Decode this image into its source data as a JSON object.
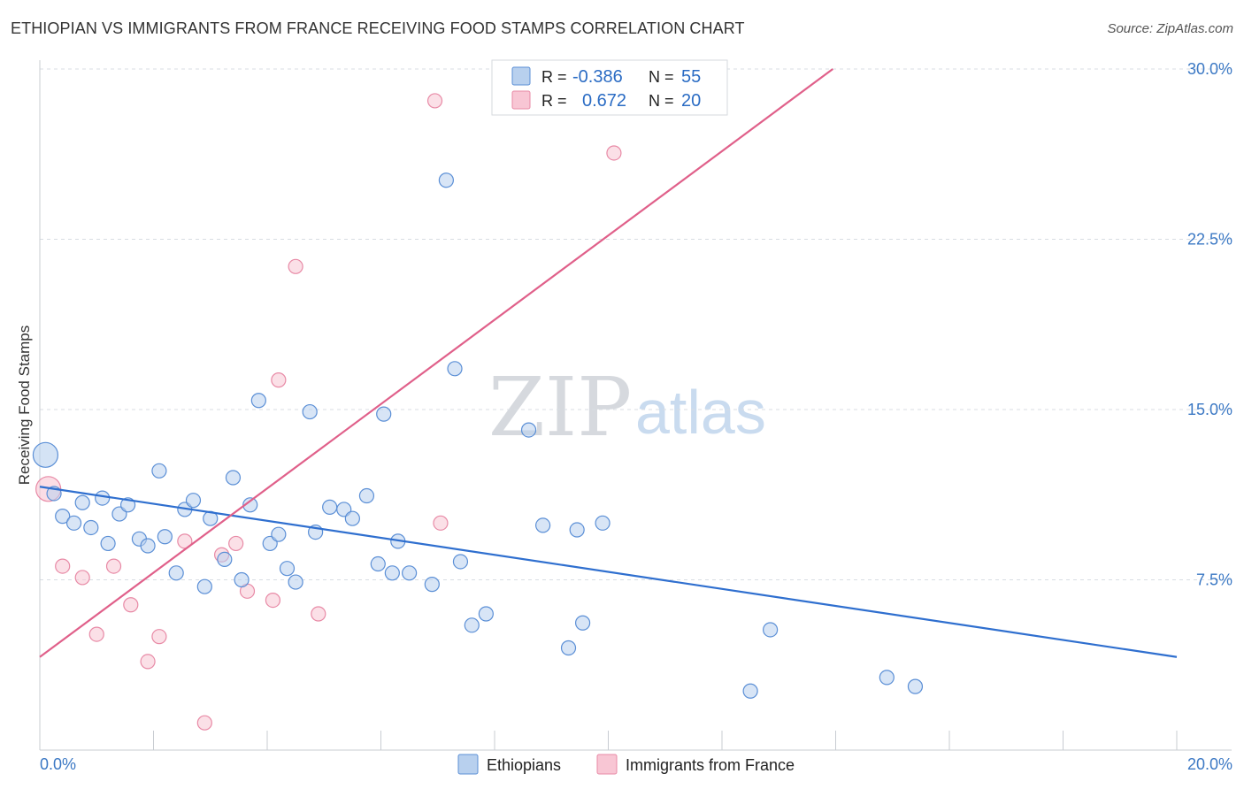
{
  "title": "ETHIOPIAN VS IMMIGRANTS FROM FRANCE RECEIVING FOOD STAMPS CORRELATION CHART",
  "source": "Source: ZipAtlas.com",
  "watermark": {
    "zip": "ZIP",
    "atlas": "atlas"
  },
  "colors": {
    "blue_fill": "#b8d0ee",
    "blue_stroke": "#5b8fd6",
    "blue_line": "#2f6fcf",
    "pink_fill": "#f8c6d4",
    "pink_stroke": "#e88aa6",
    "pink_line": "#e0608a",
    "tick_text": "#3b78c4",
    "grid": "#d8dde3"
  },
  "legend_box": {
    "row1": {
      "r_label": "R =",
      "r_value": "-0.386",
      "n_label": "N =",
      "n_value": "55"
    },
    "row2": {
      "r_label": "R =",
      "r_value": "0.672",
      "n_label": "N =",
      "n_value": "20"
    }
  },
  "chart_data": {
    "type": "scatter",
    "title": "ETHIOPIAN VS IMMIGRANTS FROM FRANCE RECEIVING FOOD STAMPS CORRELATION CHART",
    "xlabel": "",
    "ylabel": "Receiving Food Stamps",
    "xlim": [
      0,
      20
    ],
    "ylim": [
      0,
      30
    ],
    "x_tick_labels": [
      "0.0%",
      "20.0%"
    ],
    "y_tick_labels": [
      "7.5%",
      "15.0%",
      "22.5%",
      "30.0%"
    ],
    "y_tick_values": [
      7.5,
      15.0,
      22.5,
      30.0
    ],
    "legend": [
      "Ethiopians",
      "Immigrants from France"
    ],
    "series": [
      {
        "name": "Ethiopians",
        "R": -0.386,
        "N": 55,
        "trend": {
          "x0": 0,
          "y0": 11.6,
          "x1": 20,
          "y1": 4.1
        },
        "points": [
          [
            0.1,
            13.0,
            "big"
          ],
          [
            0.25,
            11.3
          ],
          [
            0.4,
            10.3
          ],
          [
            0.6,
            10.0
          ],
          [
            0.75,
            10.9
          ],
          [
            0.9,
            9.8
          ],
          [
            1.1,
            11.1
          ],
          [
            1.2,
            9.1
          ],
          [
            1.4,
            10.4
          ],
          [
            1.55,
            10.8
          ],
          [
            1.75,
            9.3
          ],
          [
            1.9,
            9.0
          ],
          [
            2.1,
            12.3
          ],
          [
            2.2,
            9.4
          ],
          [
            2.4,
            7.8
          ],
          [
            2.55,
            10.6
          ],
          [
            2.7,
            11.0
          ],
          [
            2.9,
            7.2
          ],
          [
            3.0,
            10.2
          ],
          [
            3.25,
            8.4
          ],
          [
            3.4,
            12.0
          ],
          [
            3.55,
            7.5
          ],
          [
            3.7,
            10.8
          ],
          [
            3.85,
            15.4
          ],
          [
            4.05,
            9.1
          ],
          [
            4.2,
            9.5
          ],
          [
            4.35,
            8.0
          ],
          [
            4.5,
            7.4
          ],
          [
            4.75,
            14.9
          ],
          [
            4.85,
            9.6
          ],
          [
            5.1,
            10.7
          ],
          [
            5.35,
            10.6
          ],
          [
            5.5,
            10.2
          ],
          [
            5.75,
            11.2
          ],
          [
            5.95,
            8.2
          ],
          [
            6.05,
            14.8
          ],
          [
            6.3,
            9.2
          ],
          [
            6.2,
            7.8
          ],
          [
            6.5,
            7.8
          ],
          [
            6.9,
            7.3
          ],
          [
            7.15,
            25.1
          ],
          [
            7.3,
            16.8
          ],
          [
            7.4,
            8.3
          ],
          [
            7.6,
            5.5
          ],
          [
            7.85,
            6.0
          ],
          [
            8.6,
            14.1
          ],
          [
            8.85,
            9.9
          ],
          [
            9.3,
            4.5
          ],
          [
            9.45,
            9.7
          ],
          [
            9.55,
            5.6
          ],
          [
            9.9,
            10.0
          ],
          [
            12.5,
            2.6
          ],
          [
            12.85,
            5.3
          ],
          [
            14.9,
            3.2
          ],
          [
            15.4,
            2.8
          ]
        ]
      },
      {
        "name": "Immigrants from France",
        "R": 0.672,
        "N": 20,
        "trend": {
          "x0": 0,
          "y0": 4.1,
          "x1": 13.95,
          "y1": 30.0
        },
        "points": [
          [
            0.15,
            11.5,
            "big"
          ],
          [
            0.4,
            8.1
          ],
          [
            0.75,
            7.6
          ],
          [
            1.0,
            5.1
          ],
          [
            1.3,
            8.1
          ],
          [
            1.6,
            6.4
          ],
          [
            1.9,
            3.9
          ],
          [
            2.1,
            5.0
          ],
          [
            2.55,
            9.2
          ],
          [
            2.9,
            1.2
          ],
          [
            3.2,
            8.6
          ],
          [
            3.45,
            9.1
          ],
          [
            3.65,
            7.0
          ],
          [
            4.1,
            6.6
          ],
          [
            4.2,
            16.3
          ],
          [
            4.5,
            21.3
          ],
          [
            4.9,
            6.0
          ],
          [
            6.95,
            28.6
          ],
          [
            7.05,
            10.0
          ],
          [
            10.1,
            26.3
          ]
        ]
      }
    ]
  }
}
